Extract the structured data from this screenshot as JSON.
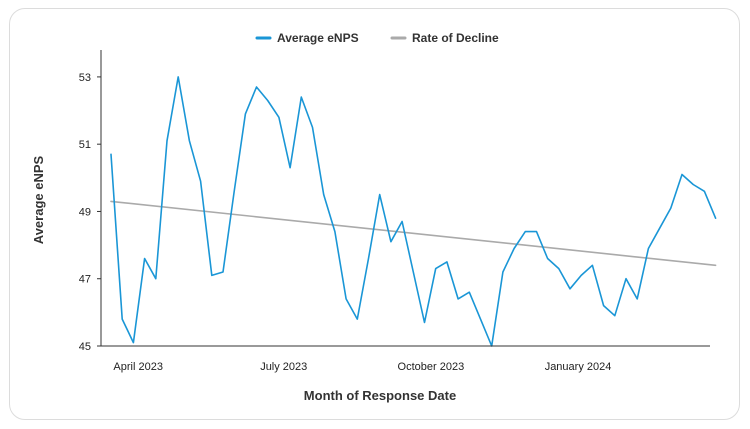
{
  "chart_data": {
    "type": "line",
    "xlabel": "Month of Response Date",
    "ylabel": "Average eNPS",
    "ylim": [
      45,
      53.8
    ],
    "xlim": [
      "2023-03-24",
      "2024-03-20"
    ],
    "yticks": [
      "45",
      "47",
      "49",
      "51",
      "53"
    ],
    "xticks": [
      {
        "label": "April 2023",
        "date": "2023-04-10"
      },
      {
        "label": "July 2023",
        "date": "2023-07-10"
      },
      {
        "label": "October 2023",
        "date": "2023-10-10"
      },
      {
        "label": "January 2024",
        "date": "2024-01-10"
      }
    ],
    "legend_position": "top-center",
    "grid": false,
    "series": [
      {
        "name": "Average eNPS",
        "color": "#1a96d6",
        "points": [
          [
            "2023-03-24",
            50.7
          ],
          [
            "2023-03-31",
            45.8
          ],
          [
            "2023-04-07",
            45.1
          ],
          [
            "2023-04-14",
            47.6
          ],
          [
            "2023-04-21",
            47.0
          ],
          [
            "2023-04-28",
            51.1
          ],
          [
            "2023-05-05",
            53.0
          ],
          [
            "2023-05-12",
            51.1
          ],
          [
            "2023-05-19",
            49.9
          ],
          [
            "2023-05-26",
            47.1
          ],
          [
            "2023-06-02",
            47.2
          ],
          [
            "2023-06-09",
            49.6
          ],
          [
            "2023-06-16",
            51.9
          ],
          [
            "2023-06-23",
            52.7
          ],
          [
            "2023-06-30",
            52.3
          ],
          [
            "2023-07-07",
            51.8
          ],
          [
            "2023-07-14",
            50.3
          ],
          [
            "2023-07-21",
            52.4
          ],
          [
            "2023-07-28",
            51.5
          ],
          [
            "2023-08-04",
            49.5
          ],
          [
            "2023-08-11",
            48.4
          ],
          [
            "2023-08-18",
            46.4
          ],
          [
            "2023-08-25",
            45.8
          ],
          [
            "2023-09-01",
            47.6
          ],
          [
            "2023-09-08",
            49.5
          ],
          [
            "2023-09-15",
            48.1
          ],
          [
            "2023-09-22",
            48.7
          ],
          [
            "2023-09-29",
            47.2
          ],
          [
            "2023-10-06",
            45.7
          ],
          [
            "2023-10-13",
            47.3
          ],
          [
            "2023-10-20",
            47.5
          ],
          [
            "2023-10-27",
            46.4
          ],
          [
            "2023-11-03",
            46.6
          ],
          [
            "2023-11-10",
            45.8
          ],
          [
            "2023-11-17",
            45.0
          ],
          [
            "2023-11-24",
            47.2
          ],
          [
            "2023-12-01",
            47.9
          ],
          [
            "2023-12-08",
            48.4
          ],
          [
            "2023-12-15",
            48.4
          ],
          [
            "2023-12-22",
            47.6
          ],
          [
            "2023-12-29",
            47.3
          ],
          [
            "2024-01-05",
            46.7
          ],
          [
            "2024-01-12",
            47.1
          ],
          [
            "2024-01-19",
            47.4
          ],
          [
            "2024-01-26",
            46.2
          ],
          [
            "2024-02-02",
            45.9
          ],
          [
            "2024-02-09",
            47.0
          ],
          [
            "2024-02-16",
            46.4
          ],
          [
            "2024-02-23",
            47.9
          ],
          [
            "2024-03-01",
            48.5
          ],
          [
            "2024-03-08",
            49.1
          ],
          [
            "2024-03-15",
            50.1
          ],
          [
            "2024-03-22",
            49.8
          ],
          [
            "2024-03-29",
            49.6
          ],
          [
            "2024-04-05",
            48.8
          ]
        ]
      },
      {
        "name": "Rate of Decline",
        "color": "#aaaaaa",
        "points": [
          [
            "2023-03-24",
            49.3
          ],
          [
            "2024-04-05",
            47.4
          ]
        ]
      }
    ]
  }
}
